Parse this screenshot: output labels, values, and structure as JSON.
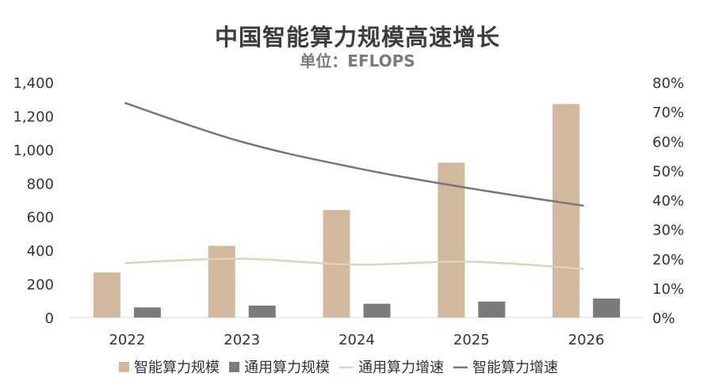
{
  "chart_data": {
    "type": "bar",
    "title": "中国智能算力规模高速增长",
    "subtitle": "单位：EFLOPS",
    "categories": [
      "2022",
      "2023",
      "2024",
      "2025",
      "2026"
    ],
    "y_left": {
      "ticks": [
        "0",
        "200",
        "400",
        "600",
        "800",
        "1,000",
        "1,200",
        "1,400"
      ],
      "ylim": [
        0,
        1400
      ]
    },
    "y_right": {
      "ticks": [
        "0%",
        "10%",
        "20%",
        "30%",
        "40%",
        "50%",
        "60%",
        "70%",
        "80%"
      ],
      "ylim": [
        0,
        0.8
      ]
    },
    "grid": false,
    "legend_position": "bottom",
    "series": [
      {
        "name": "智能算力规模",
        "kind": "bar",
        "axis": "left",
        "color": "#d2b89c",
        "values": [
          268,
          427,
          640,
          922,
          1271
        ]
      },
      {
        "name": "通用算力规模",
        "kind": "bar",
        "axis": "left",
        "color": "#7b7b7b",
        "values": [
          60,
          71,
          82,
          95,
          113
        ]
      },
      {
        "name": "通用算力增速",
        "kind": "line",
        "axis": "right",
        "color": "#e2d2bc",
        "values": [
          0.185,
          0.2,
          0.18,
          0.19,
          0.165
        ]
      },
      {
        "name": "智能算力增速",
        "kind": "line",
        "axis": "right",
        "color": "#777777",
        "values": [
          0.73,
          0.6,
          0.51,
          0.44,
          0.38
        ]
      }
    ]
  }
}
